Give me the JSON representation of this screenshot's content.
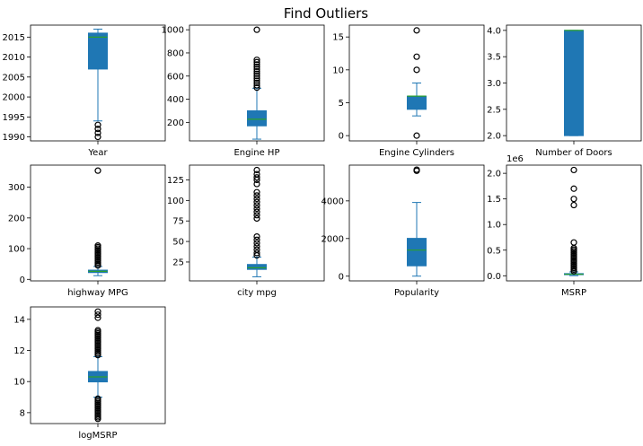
{
  "title": "Find Outliers",
  "colors": {
    "box": "#1f77b4",
    "median": "#2ca02c",
    "outlier_edge": "#000000",
    "axis": "#000000"
  },
  "chart_data": [
    {
      "type": "box",
      "xlabel": "Year",
      "ylim": [
        1989,
        2018
      ],
      "ticks": [
        1990,
        1995,
        2000,
        2005,
        2010,
        2015
      ],
      "tick_labels": [
        "1990",
        "1995",
        "2000",
        "2005",
        "2010",
        "2015"
      ],
      "q1": 2007,
      "median": 2015,
      "q3": 2016,
      "whisker_low": 1994,
      "whisker_high": 2017,
      "outliers": [
        1990,
        1991,
        1992,
        1993
      ]
    },
    {
      "type": "box",
      "xlabel": "Engine HP",
      "ylim": [
        40,
        1040
      ],
      "ticks": [
        200,
        400,
        600,
        800,
        1000
      ],
      "tick_labels": [
        "200",
        "400",
        "600",
        "800",
        "1000"
      ],
      "q1": 170,
      "median": 227,
      "q3": 300,
      "whisker_low": 55,
      "whisker_high": 495,
      "outliers": [
        500,
        520,
        540,
        560,
        580,
        600,
        620,
        640,
        660,
        680,
        700,
        720,
        740,
        1000
      ]
    },
    {
      "type": "box",
      "xlabel": "Engine Cylinders",
      "ylim": [
        -0.8,
        16.8
      ],
      "ticks": [
        0,
        5,
        10,
        15
      ],
      "tick_labels": [
        "0",
        "5",
        "10",
        "15"
      ],
      "q1": 4,
      "median": 6,
      "q3": 6,
      "whisker_low": 3,
      "whisker_high": 8,
      "outliers": [
        0,
        10,
        12,
        16
      ]
    },
    {
      "type": "box",
      "xlabel": "Number of Doors",
      "ylim": [
        1.9,
        4.1
      ],
      "ticks": [
        2.0,
        2.5,
        3.0,
        3.5,
        4.0
      ],
      "tick_labels": [
        "2.0",
        "2.5",
        "3.0",
        "3.5",
        "4.0"
      ],
      "q1": 2,
      "median": 4,
      "q3": 4,
      "whisker_low": 2,
      "whisker_high": 4,
      "outliers": []
    },
    {
      "type": "box",
      "xlabel": "highway MPG",
      "ylim": [
        -5,
        372
      ],
      "ticks": [
        0,
        100,
        200,
        300
      ],
      "tick_labels": [
        "0",
        "100",
        "200",
        "300"
      ],
      "q1": 22,
      "median": 26,
      "q3": 30,
      "whisker_low": 12,
      "whisker_high": 42,
      "outliers": [
        45,
        50,
        55,
        60,
        65,
        70,
        75,
        80,
        85,
        90,
        95,
        100,
        105,
        110,
        354
      ]
    },
    {
      "type": "box",
      "xlabel": "city mpg",
      "ylim": [
        2,
        143
      ],
      "ticks": [
        25,
        50,
        75,
        100,
        125
      ],
      "tick_labels": [
        "25",
        "50",
        "75",
        "100",
        "125"
      ],
      "q1": 16,
      "median": 18,
      "q3": 22,
      "whisker_low": 7,
      "whisker_high": 31,
      "outliers": [
        33,
        36,
        40,
        44,
        48,
        52,
        56,
        78,
        82,
        86,
        90,
        94,
        98,
        102,
        106,
        110,
        120,
        125,
        128,
        132,
        137
      ]
    },
    {
      "type": "box",
      "xlabel": "Popularity",
      "ylim": [
        -250,
        5900
      ],
      "ticks": [
        0,
        2000,
        4000
      ],
      "tick_labels": [
        "0",
        "2000",
        "4000"
      ],
      "q1": 550,
      "median": 1385,
      "q3": 2009,
      "whisker_low": 2,
      "whisker_high": 3916,
      "outliers": [
        5600,
        5657
      ]
    },
    {
      "type": "box",
      "xlabel": "MSRP",
      "ylim": [
        -100000,
        2160000
      ],
      "ticks": [
        0,
        500000,
        1000000,
        1500000,
        2000000
      ],
      "tick_labels": [
        "0.0",
        "0.5",
        "1.0",
        "1.5",
        "2.0"
      ],
      "scale_label": "1e6",
      "q1": 21000,
      "median": 30000,
      "q3": 42000,
      "whisker_low": 2000,
      "whisker_high": 75000,
      "outliers": [
        90000,
        120000,
        150000,
        180000,
        210000,
        240000,
        270000,
        300000,
        330000,
        360000,
        390000,
        420000,
        450000,
        480000,
        510000,
        540000,
        650000,
        1380000,
        1500000,
        1700000,
        2065000
      ]
    },
    {
      "type": "box",
      "xlabel": "logMSRP",
      "ylim": [
        7.3,
        14.8
      ],
      "ticks": [
        8,
        10,
        12,
        14
      ],
      "tick_labels": [
        "8",
        "10",
        "12",
        "14"
      ],
      "q1": 9.98,
      "median": 10.3,
      "q3": 10.65,
      "whisker_low": 9.0,
      "whisker_high": 11.6,
      "outliers": [
        7.6,
        7.7,
        7.8,
        7.9,
        8.0,
        8.1,
        8.2,
        8.3,
        8.4,
        8.5,
        8.6,
        8.7,
        8.8,
        8.9,
        11.7,
        11.8,
        11.9,
        12.0,
        12.1,
        12.2,
        12.3,
        12.4,
        12.5,
        12.6,
        12.7,
        12.8,
        12.9,
        13.0,
        13.1,
        13.2,
        13.3,
        14.1,
        14.3,
        14.5
      ]
    }
  ]
}
